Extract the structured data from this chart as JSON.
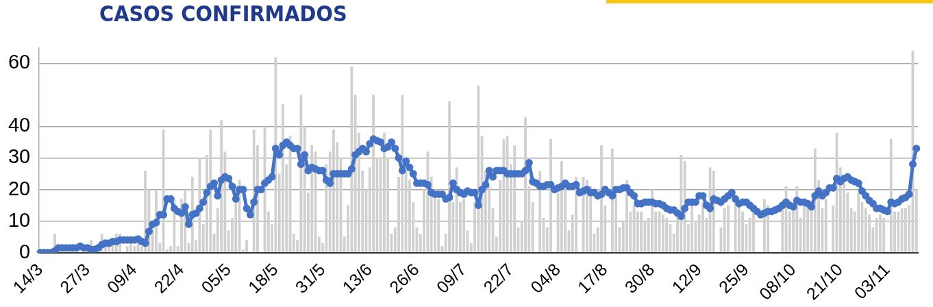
{
  "chart_data": {
    "type": "bar",
    "title": "CASOS CONFIRMADOS",
    "categories": [
      "14/3",
      null,
      null,
      null,
      null,
      null,
      null,
      null,
      null,
      null,
      null,
      null,
      null,
      "27/3",
      null,
      null,
      null,
      null,
      null,
      null,
      null,
      null,
      null,
      null,
      null,
      null,
      "09/4",
      null,
      null,
      null,
      null,
      null,
      null,
      null,
      null,
      null,
      null,
      null,
      null,
      "22/4",
      null,
      null,
      null,
      null,
      null,
      null,
      null,
      null,
      null,
      null,
      null,
      null,
      "05/5",
      null,
      null,
      null,
      null,
      null,
      null,
      null,
      null,
      null,
      null,
      null,
      null,
      "18/5",
      null,
      null,
      null,
      null,
      null,
      null,
      null,
      null,
      null,
      null,
      null,
      null,
      "31/5",
      null,
      null,
      null,
      null,
      null,
      null,
      null,
      null,
      null,
      null,
      null,
      null,
      "13/6",
      null,
      null,
      null,
      null,
      null,
      null,
      null,
      null,
      null,
      null,
      null,
      null,
      "26/6",
      null,
      null,
      null,
      null,
      null,
      null,
      null,
      null,
      null,
      null,
      null,
      null,
      "09/7",
      null,
      null,
      null,
      null,
      null,
      null,
      null,
      null,
      null,
      null,
      null,
      null,
      "22/7",
      null,
      null,
      null,
      null,
      null,
      null,
      null,
      null,
      null,
      null,
      null,
      null,
      "04/8",
      null,
      null,
      null,
      null,
      null,
      null,
      null,
      null,
      null,
      null,
      null,
      null,
      "17/8",
      null,
      null,
      null,
      null,
      null,
      null,
      null,
      null,
      null,
      null,
      null,
      null,
      "30/8",
      null,
      null,
      null,
      null,
      null,
      null,
      null,
      null,
      null,
      null,
      null,
      null,
      "12/9",
      null,
      null,
      null,
      null,
      null,
      null,
      null,
      null,
      null,
      null,
      null,
      null,
      "25/9",
      null,
      null,
      null,
      null,
      null,
      null,
      null,
      null,
      null,
      null,
      null,
      null,
      "08/10",
      null,
      null,
      null,
      null,
      null,
      null,
      null,
      null,
      null,
      null,
      null,
      null,
      "21/10",
      null,
      null,
      null,
      null,
      null,
      null,
      null,
      null,
      null,
      null,
      null,
      null,
      "03/11",
      null,
      null,
      null,
      null,
      null,
      null,
      null,
      null
    ],
    "series": [
      {
        "type": "bar",
        "color": "#d0d0d0",
        "values": [
          0,
          0,
          0,
          null,
          6,
          null,
          null,
          null,
          null,
          null,
          null,
          null,
          null,
          null,
          4,
          null,
          null,
          6,
          2,
          2,
          3,
          6,
          6,
          null,
          2,
          3,
          2,
          3,
          2,
          26,
          20,
          8,
          20,
          3,
          39,
          1,
          2,
          17,
          2,
          17,
          20,
          3,
          24,
          4,
          30,
          9,
          31,
          39,
          6,
          14,
          42,
          32,
          7,
          11,
          21,
          23,
          1,
          4,
          null,
          39,
          34,
          null,
          40,
          13,
          9,
          62,
          25,
          47,
          28,
          37,
          6,
          4,
          50,
          40,
          19,
          34,
          32,
          5,
          3,
          28,
          32,
          39,
          35,
          30,
          5,
          15,
          59,
          50,
          38,
          26,
          20,
          27,
          50,
          30,
          30,
          38,
          30,
          6,
          8,
          24,
          50,
          26,
          23,
          16,
          8,
          6,
          20,
          32,
          24,
          18,
          17,
          2,
          6,
          48,
          16,
          27,
          16,
          17,
          7,
          3,
          16,
          53,
          37,
          26,
          21,
          14,
          5,
          23,
          36,
          37,
          28,
          34,
          8,
          10,
          43,
          21,
          16,
          null,
          26,
          11,
          8,
          36,
          null,
          19,
          29,
          20,
          7,
          12,
          24,
          null,
          24,
          23,
          21,
          6,
          8,
          34,
          15,
          null,
          33,
          19,
          8,
          10,
          23,
          13,
          15,
          13,
          13,
          10,
          11,
          20,
          13,
          13,
          12,
          11,
          9,
          6,
          11,
          31,
          29,
          9,
          15,
          10,
          12,
          16,
          11,
          27,
          26,
          null,
          8,
          14,
          15,
          null,
          16,
          15,
          13,
          9,
          11,
          13,
          null,
          null,
          17,
          15,
          null,
          null,
          null,
          14,
          21,
          13,
          14,
          21,
          11,
          15,
          15,
          14,
          33,
          23,
          14,
          17,
          null,
          15,
          38,
          27,
          23,
          19,
          14,
          13,
          19,
          16,
          14,
          12,
          8,
          11,
          12,
          11,
          null,
          36,
          13,
          13,
          14,
          14,
          15,
          64,
          20
        ]
      },
      {
        "type": "line",
        "color": "#4472c4",
        "values": [
          0,
          0,
          0,
          0,
          0.5,
          1.5,
          1.5,
          1.5,
          1.5,
          1.5,
          1.5,
          2,
          1.5,
          1.5,
          1,
          1,
          1.5,
          2.5,
          3,
          3,
          3.5,
          3.5,
          4,
          4,
          4,
          4,
          4,
          4.3,
          3.5,
          3,
          6.7,
          9,
          9.5,
          12,
          12,
          17,
          17,
          14,
          13,
          12.5,
          14.5,
          9,
          12,
          12.5,
          14,
          16,
          19,
          21,
          22,
          18,
          23,
          24,
          23.5,
          21,
          17,
          20,
          20,
          14,
          12,
          16,
          20,
          20,
          22,
          23,
          24,
          33,
          31,
          34,
          35,
          34,
          33,
          33,
          28,
          31,
          26,
          27,
          26.5,
          26,
          26,
          23,
          22,
          25,
          25,
          25,
          25,
          25,
          26.5,
          31,
          32,
          33,
          32,
          34.5,
          36,
          35.5,
          35,
          33,
          33.5,
          35,
          33,
          30,
          26,
          29,
          27,
          25,
          22,
          22,
          22,
          21.5,
          19,
          18.5,
          18.5,
          18.5,
          17,
          17.5,
          22,
          20,
          19,
          18.5,
          19.5,
          19,
          19,
          15,
          20,
          21.5,
          26,
          24,
          26,
          26,
          26,
          25,
          25,
          25,
          25,
          25,
          26,
          28.5,
          22.5,
          22,
          21,
          21,
          21.5,
          21.5,
          20,
          20.5,
          21,
          22,
          21,
          21,
          21.5,
          19,
          19.5,
          20,
          19,
          19,
          18,
          18.5,
          20,
          19,
          18,
          20,
          20,
          20.5,
          20.5,
          19,
          18,
          15.5,
          15.5,
          16,
          16,
          16,
          15.5,
          15.5,
          15,
          14,
          13.5,
          13.5,
          12.5,
          11.5,
          14,
          16,
          16,
          16,
          18,
          18,
          15,
          14,
          17,
          16.5,
          16,
          17,
          18,
          19,
          17,
          15.5,
          16,
          16,
          15,
          14,
          13,
          12,
          12.5,
          13,
          13,
          13.5,
          14,
          15,
          16,
          15,
          14.5,
          16.5,
          16,
          16,
          15.5,
          14.5,
          18,
          19.5,
          18,
          19,
          20.5,
          20.5,
          23.5,
          22.5,
          23.5,
          24,
          23,
          22.5,
          22,
          19.5,
          18,
          16.5,
          15.5,
          14,
          14,
          13.5,
          13,
          16,
          15.5,
          16,
          17,
          17.5,
          18.5,
          28,
          33
        ]
      }
    ],
    "ylim": [
      0,
      65
    ],
    "yticks": [
      0,
      10,
      20,
      30,
      40,
      60
    ],
    "grid": "y",
    "legend": false,
    "marker": "circle",
    "line_style": "solid"
  }
}
